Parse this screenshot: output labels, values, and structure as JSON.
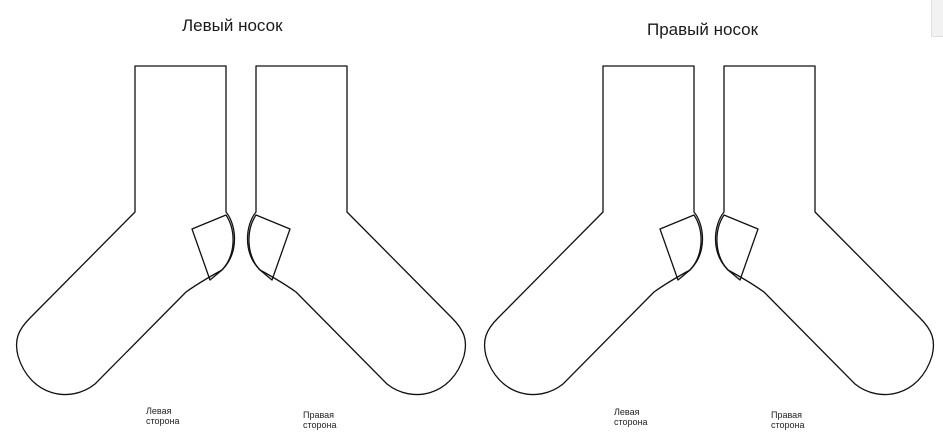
{
  "left_sock": {
    "title": "Левый носок",
    "left_side_caption": [
      "Левая",
      "сторона"
    ],
    "right_side_caption": [
      "Правая",
      "сторона"
    ]
  },
  "right_sock": {
    "title": "Правый носок",
    "left_side_caption": [
      "Левая",
      "сторона"
    ],
    "right_side_caption": [
      "Правая",
      "сторона"
    ]
  },
  "colors": {
    "outline": "#111111",
    "background": "#ffffff"
  }
}
